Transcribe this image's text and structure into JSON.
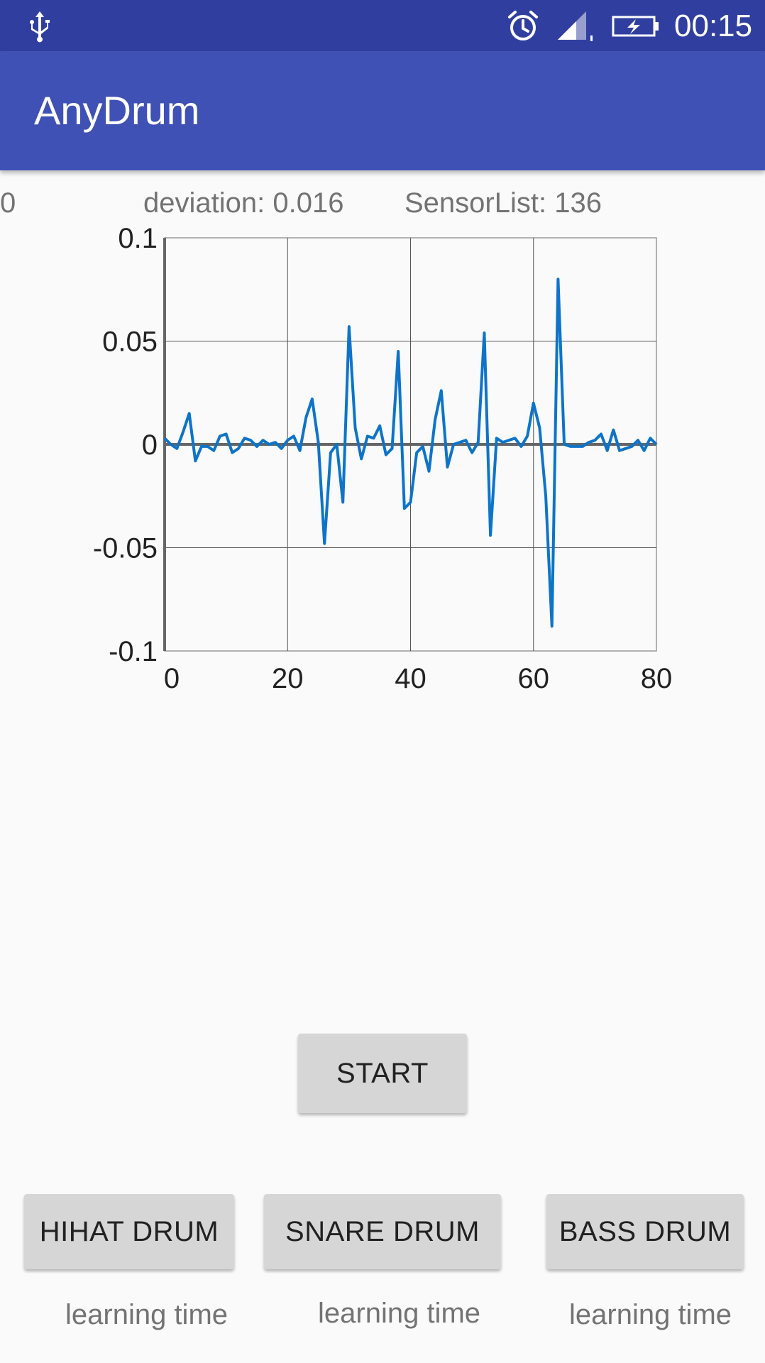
{
  "status_bar": {
    "time": "00:15",
    "icons": [
      "usb-icon",
      "alarm-icon",
      "signal-icon",
      "battery-charging-icon"
    ],
    "background": "#303f9f"
  },
  "app_bar": {
    "title": "AnyDrum",
    "background": "#3f51b5"
  },
  "info": {
    "left_value": "0",
    "deviation": "deviation: 0.016",
    "sensor_list": "SensorList: 136"
  },
  "chart_data": {
    "type": "line",
    "title": "",
    "xlabel": "",
    "ylabel": "",
    "xlim": [
      0,
      80
    ],
    "ylim": [
      -0.1,
      0.1
    ],
    "x_ticks": [
      "0",
      "20",
      "40",
      "60",
      "80"
    ],
    "y_ticks": [
      "0.1",
      "0.05",
      "0",
      "-0.05",
      "-0.1"
    ],
    "grid": true,
    "line_color": "#0d74c9",
    "series": [
      {
        "values": [
          0.003,
          0.0,
          -0.002,
          0.006,
          0.015,
          -0.008,
          -0.001,
          -0.001,
          -0.003,
          0.004,
          0.005,
          -0.004,
          -0.002,
          0.003,
          0.002,
          -0.001,
          0.002,
          0.0,
          0.001,
          -0.002,
          0.002,
          0.004,
          -0.003,
          0.013,
          0.022,
          0.001,
          -0.048,
          -0.004,
          0.0,
          -0.028,
          0.057,
          0.008,
          -0.007,
          0.004,
          0.003,
          0.009,
          -0.005,
          -0.002,
          0.045,
          -0.031,
          -0.028,
          -0.004,
          -0.001,
          -0.013,
          0.012,
          0.026,
          -0.011,
          0.0,
          0.001,
          0.002,
          -0.004,
          0.001,
          0.054,
          -0.044,
          0.003,
          0.001,
          0.002,
          0.003,
          -0.001,
          0.004,
          0.02,
          0.008,
          -0.025,
          -0.088,
          0.08,
          0.0,
          -0.001,
          -0.001,
          -0.001,
          0.001,
          0.002,
          0.005,
          -0.003,
          0.007,
          -0.003,
          -0.002,
          -0.001,
          0.002,
          -0.003,
          0.003,
          0.0
        ]
      }
    ]
  },
  "buttons": {
    "start": "START",
    "hihat": "HIHAT DRUM",
    "snare": "SNARE DRUM",
    "bass": "BASS DRUM"
  },
  "learning": {
    "hihat": "learning time",
    "snare": "learning time",
    "bass": "learning time"
  }
}
